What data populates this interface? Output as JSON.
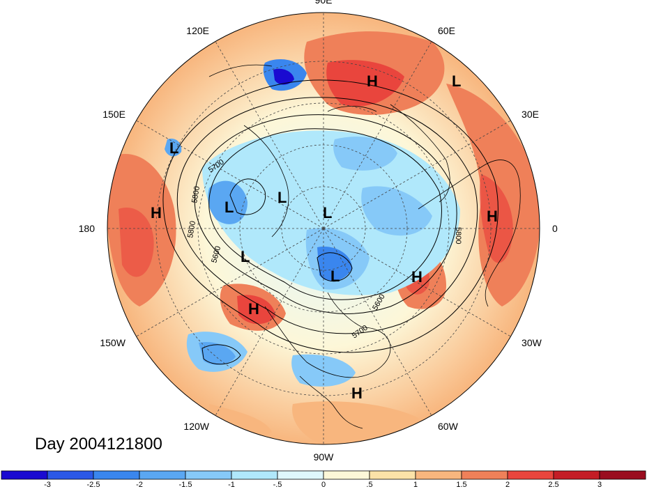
{
  "title": "Day 2004121800",
  "longitude_labels": [
    {
      "text": "90E",
      "lon": 90
    },
    {
      "text": "60E",
      "lon": 60
    },
    {
      "text": "30E",
      "lon": 30
    },
    {
      "text": "0",
      "lon": 0
    },
    {
      "text": "30W",
      "lon": -30
    },
    {
      "text": "60W",
      "lon": -60
    },
    {
      "text": "90W",
      "lon": -90
    },
    {
      "text": "120W",
      "lon": -120
    },
    {
      "text": "150W",
      "lon": -150
    },
    {
      "text": "180",
      "lon": 180
    },
    {
      "text": "150E",
      "lon": 150
    },
    {
      "text": "120E",
      "lon": 120
    }
  ],
  "pressure_centers": [
    {
      "type": "L",
      "label": "L"
    },
    {
      "type": "L",
      "label": "L"
    },
    {
      "type": "L",
      "label": "L"
    },
    {
      "type": "L",
      "label": "L"
    },
    {
      "type": "L",
      "label": "L"
    },
    {
      "type": "L",
      "label": "L"
    },
    {
      "type": "L",
      "label": "L"
    },
    {
      "type": "H",
      "label": "H"
    },
    {
      "type": "H",
      "label": "H"
    },
    {
      "type": "H",
      "label": "H"
    },
    {
      "type": "H",
      "label": "H"
    },
    {
      "type": "H",
      "label": "H"
    },
    {
      "type": "H",
      "label": "H"
    }
  ],
  "contour_labels": [
    "5700",
    "5800",
    "5800",
    "5600",
    "5800",
    "5600",
    "5700"
  ],
  "colorbar": {
    "labels": [
      "-3",
      "-2.5",
      "-2",
      "-1.5",
      "-1",
      "-.5",
      "0",
      ".5",
      "1",
      "1.5",
      "2",
      "2.5",
      "3"
    ],
    "colors": [
      "#1a0ad1",
      "#2b58e6",
      "#3a86ee",
      "#5aa7f2",
      "#86c9f8",
      "#b0e8fb",
      "#dff7fd",
      "#fdf7d8",
      "#fbe2a8",
      "#f8b67e",
      "#ef8059",
      "#e9453d",
      "#c41d26",
      "#9a0d1f"
    ]
  }
}
